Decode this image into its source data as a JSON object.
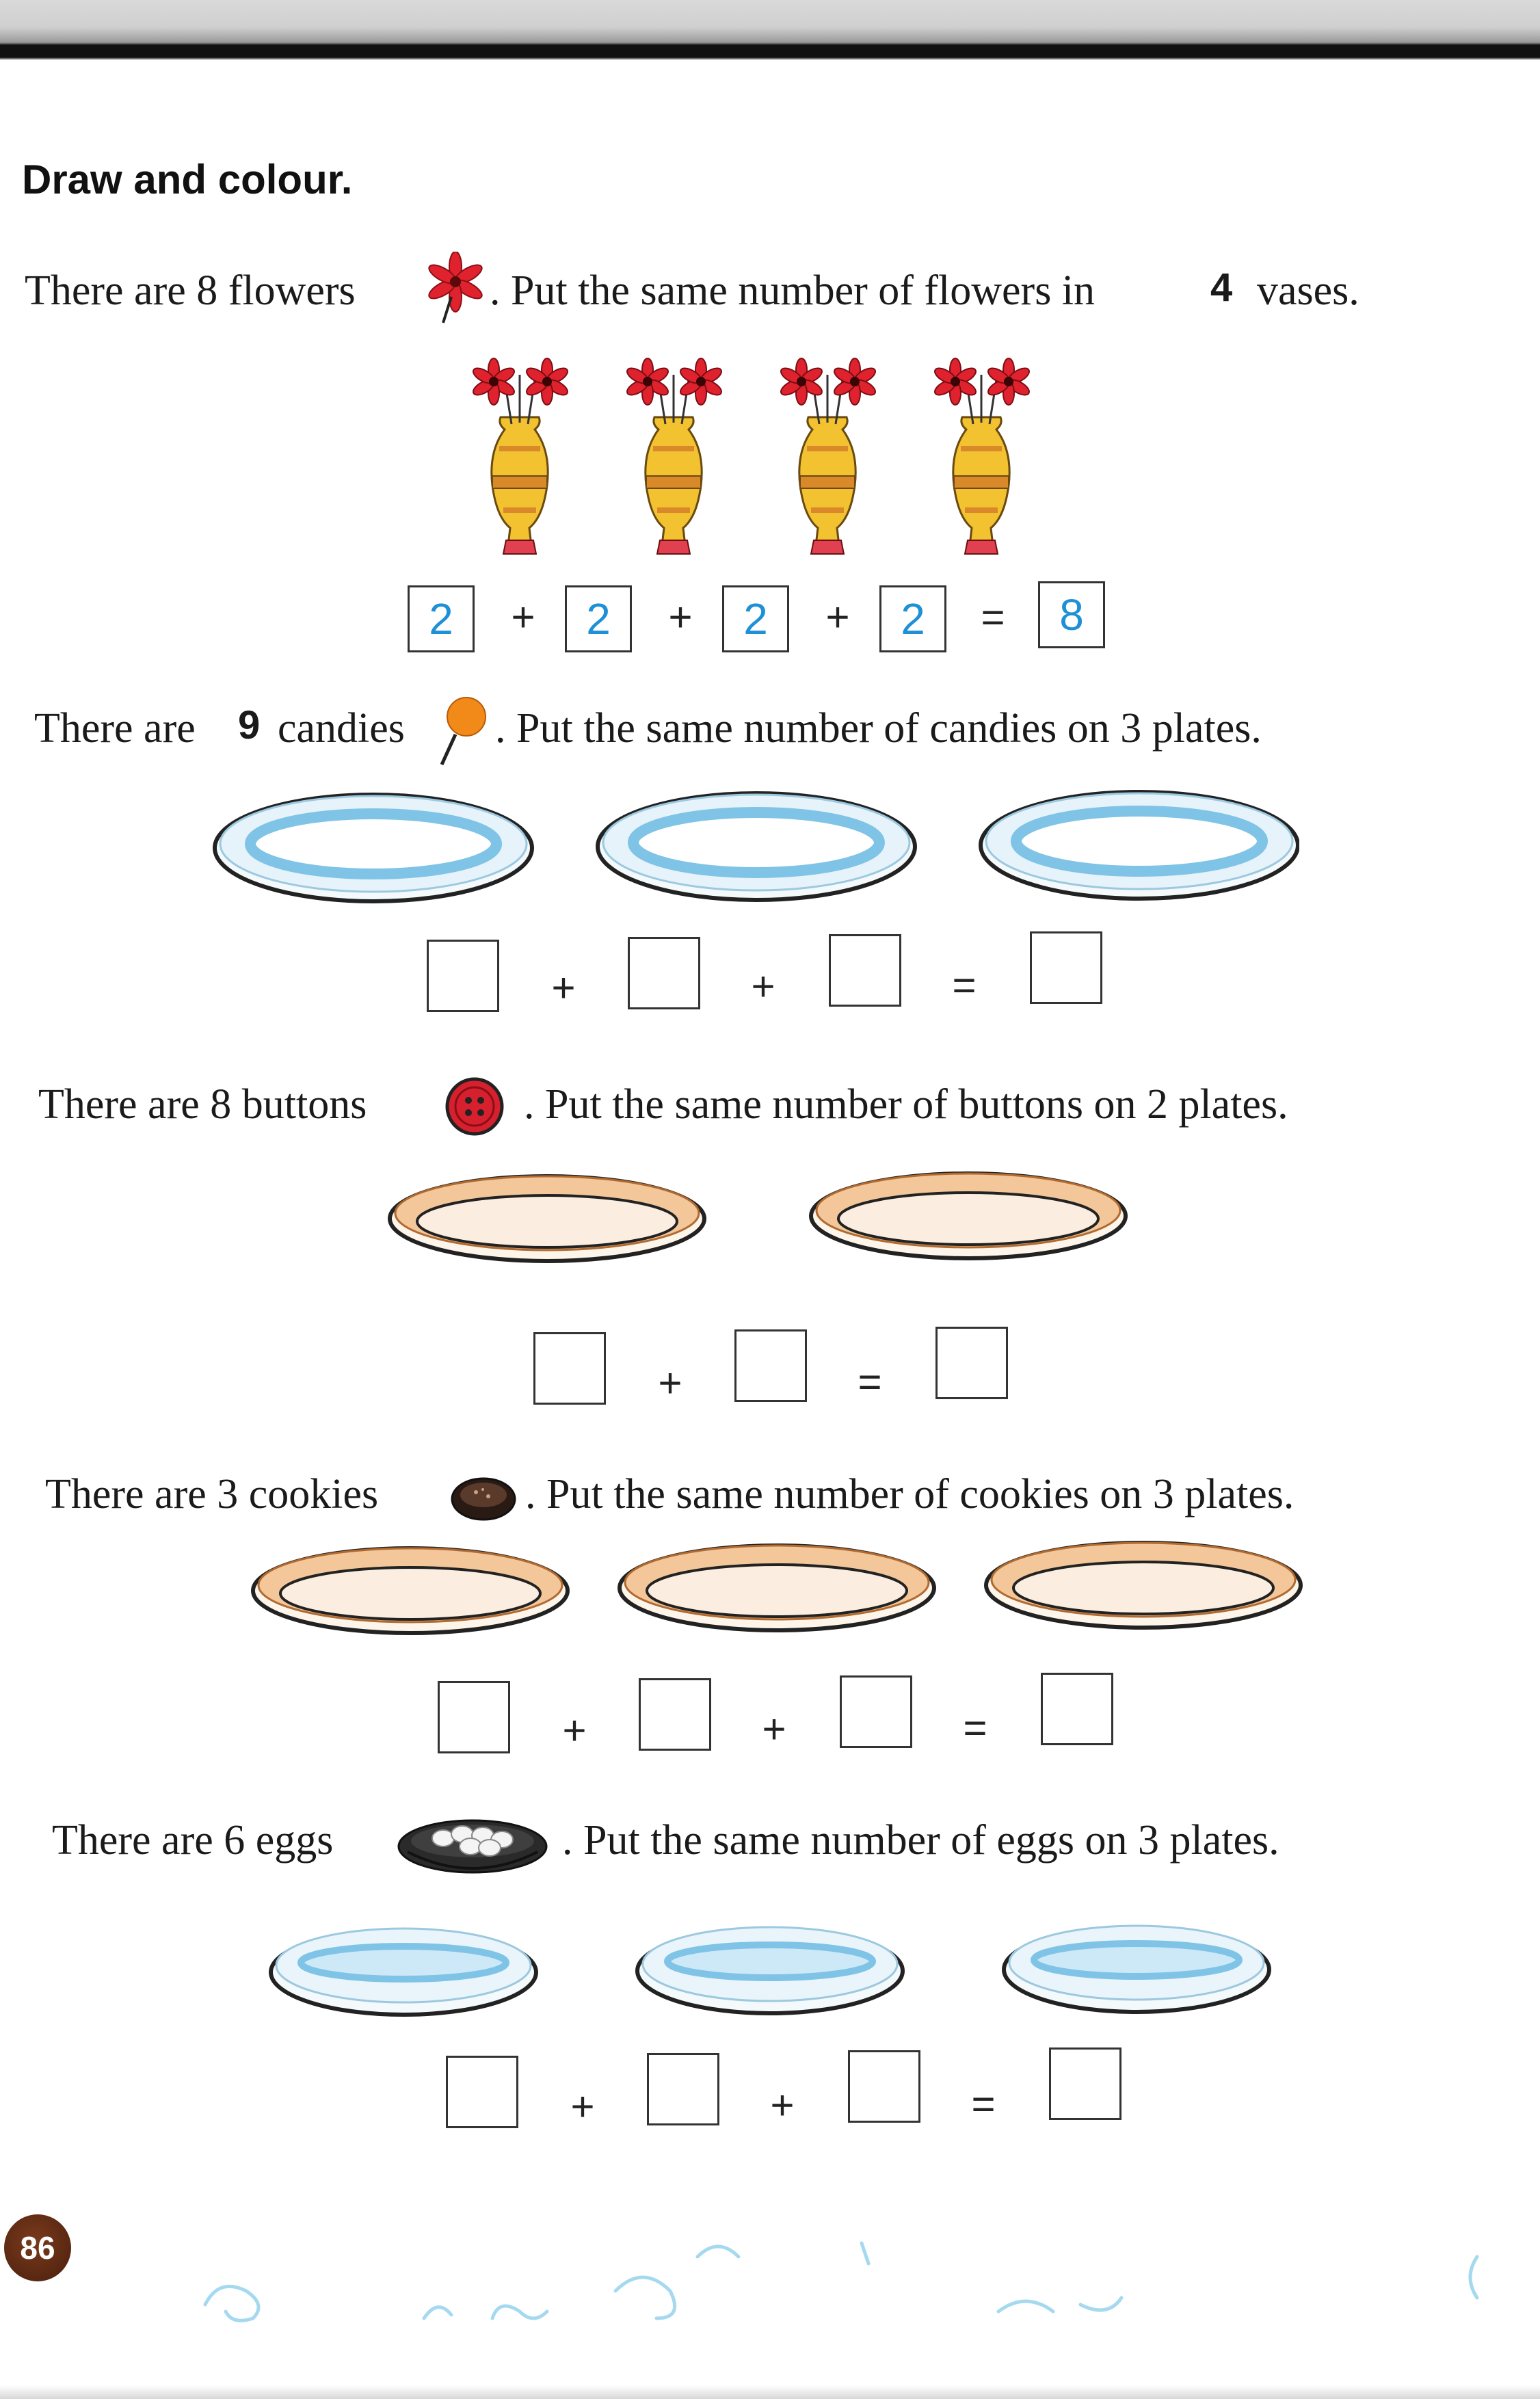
{
  "heading": "Draw and colour.",
  "rows": [
    {
      "pre": "There are 8 flowers",
      "post": ". Put the same number of flowers in",
      "hand": "4",
      "tail": "vases.",
      "icon": "flower-icon",
      "boxes": [
        "2",
        "2",
        "2",
        "2",
        "8"
      ],
      "ops": [
        "+",
        "+",
        "+",
        "="
      ]
    },
    {
      "pre": "There are",
      "hand": "9",
      "mid": "candies",
      "post": ". Put the same number of candies on 3 plates.",
      "icon": "candy-icon",
      "boxes": [
        "",
        "",
        "",
        ""
      ],
      "ops": [
        "+",
        "+",
        "="
      ]
    },
    {
      "pre": "There are 8 buttons",
      "post": ". Put the same number of buttons on 2 plates.",
      "icon": "button-icon",
      "boxes": [
        "",
        "",
        ""
      ],
      "ops": [
        "+",
        "="
      ]
    },
    {
      "pre": "There are 3 cookies",
      "post": ". Put the same number of cookies on 3 plates.",
      "icon": "cookie-icon",
      "boxes": [
        "",
        "",
        "",
        ""
      ],
      "ops": [
        "+",
        "+",
        "="
      ]
    },
    {
      "pre": "There are 6 eggs",
      "post": ". Put the same number of eggs on 3 plates.",
      "icon": "egg-bowl-icon",
      "boxes": [
        "",
        "",
        "",
        ""
      ],
      "ops": [
        "+",
        "+",
        "="
      ]
    }
  ],
  "page_number": "86",
  "colors": {
    "flower": "#e0222e",
    "vase": "#f2c230",
    "blue_plate": "#7fc4e6",
    "orange_plate": "#e8a06a",
    "answer_blue": "#1e90d6"
  }
}
